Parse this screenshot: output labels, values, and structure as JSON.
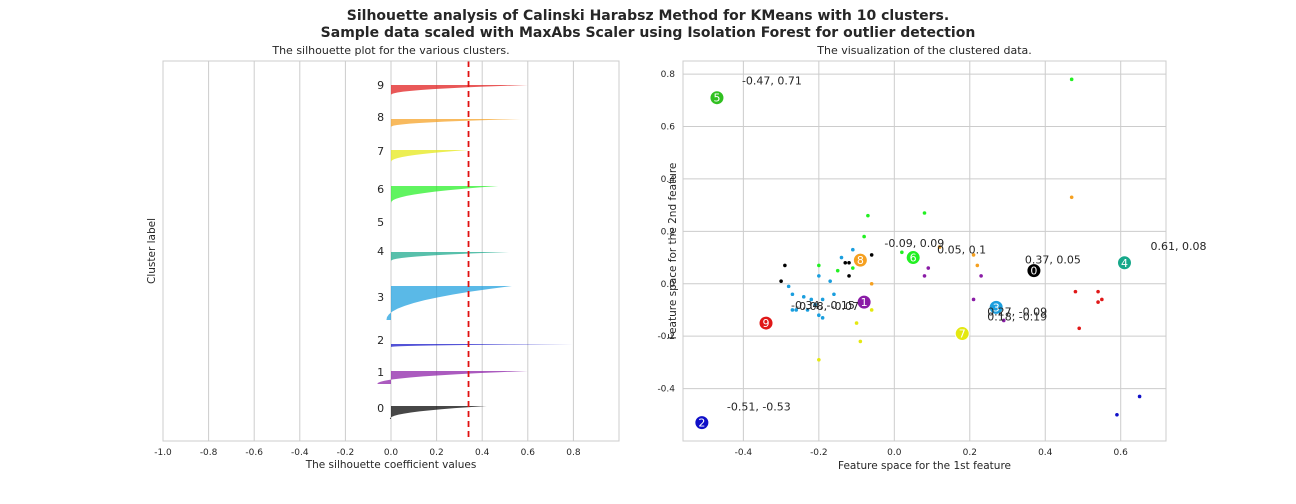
{
  "suptitle": {
    "line1": "Silhouette analysis of Calinski Harabsz Method for KMeans with 10 clusters.",
    "line2": "Sample data scaled with MaxAbs Scaler using Isolation Forest for outlier detection"
  },
  "chart_data": [
    {
      "type": "bar",
      "title": "The silhouette plot for the various clusters.",
      "xlabel": "The silhouette coefficient values",
      "ylabel": "Cluster label",
      "xlim": [
        -1.0,
        1.0
      ],
      "xticks": [
        "-1.0",
        "-0.8",
        "-0.6",
        "-0.4",
        "-0.2",
        "0.0",
        "0.2",
        "0.4",
        "0.6",
        "0.8"
      ],
      "average_silhouette": 0.34,
      "grid": true,
      "clusters": [
        {
          "label": "0",
          "color": "#000000",
          "size": 5,
          "max": 0.42,
          "min": -0.005
        },
        {
          "label": "1",
          "color": "#8a1ca6",
          "size": 5,
          "max": 0.6,
          "min": -0.06
        },
        {
          "label": "2",
          "color": "#1010c8",
          "size": 1,
          "max": 0.8,
          "min": 0.0
        },
        {
          "label": "3",
          "color": "#1a9ede",
          "size": 14,
          "max": 0.53,
          "min": -0.02
        },
        {
          "label": "4",
          "color": "#17a88a",
          "size": 4,
          "max": 0.52,
          "min": 0.0
        },
        {
          "label": "5",
          "color": "#30c020",
          "size": 0,
          "max": 0,
          "min": 0
        },
        {
          "label": "6",
          "color": "#22f022",
          "size": 7,
          "max": 0.47,
          "min": 0.0
        },
        {
          "label": "7",
          "color": "#e4e810",
          "size": 4,
          "max": 0.34,
          "min": 0.0
        },
        {
          "label": "8",
          "color": "#f5a020",
          "size": 3,
          "max": 0.57,
          "min": 0.0
        },
        {
          "label": "9",
          "color": "#e01818",
          "size": 4,
          "max": 0.6,
          "min": 0.0
        }
      ]
    },
    {
      "type": "scatter",
      "title": "The visualization of the clustered data.",
      "xlabel": "Feature space for the 1st feature",
      "ylabel": "Feature space for the 2nd feature",
      "xlim": [
        -0.56,
        0.72
      ],
      "ylim": [
        -0.6,
        0.85
      ],
      "xticks": [
        "-0.4",
        "-0.2",
        "0.0",
        "0.2",
        "0.4",
        "0.6"
      ],
      "yticks": [
        "-0.4",
        "-0.2",
        "0.0",
        "0.2",
        "0.4",
        "0.6",
        "0.8"
      ],
      "grid": true,
      "points": [
        {
          "x": -0.29,
          "y": 0.07,
          "c": "#000000"
        },
        {
          "x": -0.3,
          "y": 0.01,
          "c": "#000000"
        },
        {
          "x": -0.13,
          "y": 0.08,
          "c": "#000000"
        },
        {
          "x": -0.12,
          "y": 0.08,
          "c": "#000000"
        },
        {
          "x": -0.06,
          "y": 0.11,
          "c": "#000000"
        },
        {
          "x": -0.12,
          "y": 0.03,
          "c": "#000000"
        },
        {
          "x": -0.14,
          "y": 0.1,
          "c": "#1a9ede"
        },
        {
          "x": -0.11,
          "y": 0.13,
          "c": "#1a9ede"
        },
        {
          "x": -0.28,
          "y": -0.01,
          "c": "#1a9ede"
        },
        {
          "x": -0.2,
          "y": 0.03,
          "c": "#1a9ede"
        },
        {
          "x": -0.24,
          "y": -0.05,
          "c": "#1a9ede"
        },
        {
          "x": -0.22,
          "y": -0.06,
          "c": "#1a9ede"
        },
        {
          "x": -0.19,
          "y": -0.06,
          "c": "#1a9ede"
        },
        {
          "x": -0.27,
          "y": -0.04,
          "c": "#1a9ede"
        },
        {
          "x": -0.2,
          "y": -0.12,
          "c": "#1a9ede"
        },
        {
          "x": -0.23,
          "y": -0.1,
          "c": "#1a9ede"
        },
        {
          "x": -0.26,
          "y": -0.1,
          "c": "#1a9ede"
        },
        {
          "x": -0.27,
          "y": -0.1,
          "c": "#1a9ede"
        },
        {
          "x": -0.17,
          "y": 0.01,
          "c": "#1a9ede"
        },
        {
          "x": -0.16,
          "y": -0.04,
          "c": "#1a9ede"
        },
        {
          "x": -0.21,
          "y": -0.08,
          "c": "#1a9ede"
        },
        {
          "x": -0.19,
          "y": -0.13,
          "c": "#1a9ede"
        },
        {
          "x": -0.2,
          "y": 0.07,
          "c": "#22f022"
        },
        {
          "x": -0.15,
          "y": 0.05,
          "c": "#22f022"
        },
        {
          "x": -0.11,
          "y": 0.06,
          "c": "#22f022"
        },
        {
          "x": -0.08,
          "y": 0.18,
          "c": "#22f022"
        },
        {
          "x": -0.07,
          "y": 0.26,
          "c": "#22f022"
        },
        {
          "x": 0.02,
          "y": 0.12,
          "c": "#22f022"
        },
        {
          "x": 0.08,
          "y": 0.27,
          "c": "#22f022"
        },
        {
          "x": 0.47,
          "y": 0.78,
          "c": "#22f022"
        },
        {
          "x": 0.12,
          "y": 0.14,
          "c": "#f5a020"
        },
        {
          "x": 0.21,
          "y": 0.11,
          "c": "#f5a020"
        },
        {
          "x": 0.22,
          "y": 0.07,
          "c": "#f5a020"
        },
        {
          "x": 0.47,
          "y": 0.33,
          "c": "#f5a020"
        },
        {
          "x": -0.06,
          "y": 0.0,
          "c": "#f5a020"
        },
        {
          "x": 0.09,
          "y": 0.06,
          "c": "#8a1ca6"
        },
        {
          "x": 0.08,
          "y": 0.03,
          "c": "#8a1ca6"
        },
        {
          "x": 0.23,
          "y": 0.03,
          "c": "#8a1ca6"
        },
        {
          "x": 0.21,
          "y": -0.06,
          "c": "#8a1ca6"
        },
        {
          "x": 0.29,
          "y": -0.14,
          "c": "#8a1ca6"
        },
        {
          "x": -0.1,
          "y": -0.15,
          "c": "#e4e810"
        },
        {
          "x": -0.2,
          "y": -0.29,
          "c": "#e4e810"
        },
        {
          "x": -0.09,
          "y": -0.22,
          "c": "#e4e810"
        },
        {
          "x": -0.06,
          "y": -0.1,
          "c": "#e4e810"
        },
        {
          "x": 0.48,
          "y": -0.03,
          "c": "#e01818"
        },
        {
          "x": 0.54,
          "y": -0.07,
          "c": "#e01818"
        },
        {
          "x": 0.55,
          "y": -0.06,
          "c": "#e01818"
        },
        {
          "x": 0.49,
          "y": -0.17,
          "c": "#e01818"
        },
        {
          "x": 0.54,
          "y": -0.03,
          "c": "#e01818"
        },
        {
          "x": 0.59,
          "y": -0.5,
          "c": "#1010c8"
        },
        {
          "x": 0.65,
          "y": -0.43,
          "c": "#1010c8"
        }
      ],
      "centers": [
        {
          "label": "0",
          "x": 0.37,
          "y": 0.05,
          "color": "#000000",
          "text": "0.37, 0.05"
        },
        {
          "label": "1",
          "x": -0.08,
          "y": -0.07,
          "color": "#8a1ca6",
          "text": "-0.08, -0.07"
        },
        {
          "label": "2",
          "x": -0.51,
          "y": -0.53,
          "color": "#1010c8",
          "text": "-0.51, -0.53"
        },
        {
          "label": "3",
          "x": 0.27,
          "y": -0.09,
          "color": "#1a9ede",
          "text": "0.27, -0.09"
        },
        {
          "label": "4",
          "x": 0.61,
          "y": 0.08,
          "color": "#17a88a",
          "text": "0.61, 0.08"
        },
        {
          "label": "5",
          "x": -0.47,
          "y": 0.71,
          "color": "#30c020",
          "text": "-0.47, 0.71"
        },
        {
          "label": "6",
          "x": 0.05,
          "y": 0.1,
          "color": "#22f022",
          "text": "0.05, 0.1"
        },
        {
          "label": "7",
          "x": 0.18,
          "y": -0.19,
          "color": "#e4e810",
          "text": "0.18, -0.19"
        },
        {
          "label": "8",
          "x": -0.09,
          "y": 0.09,
          "color": "#f5a020",
          "text": "-0.09, 0.09"
        },
        {
          "label": "9",
          "x": -0.34,
          "y": -0.15,
          "color": "#e01818",
          "text": "-0.34, -0.15"
        }
      ]
    }
  ]
}
